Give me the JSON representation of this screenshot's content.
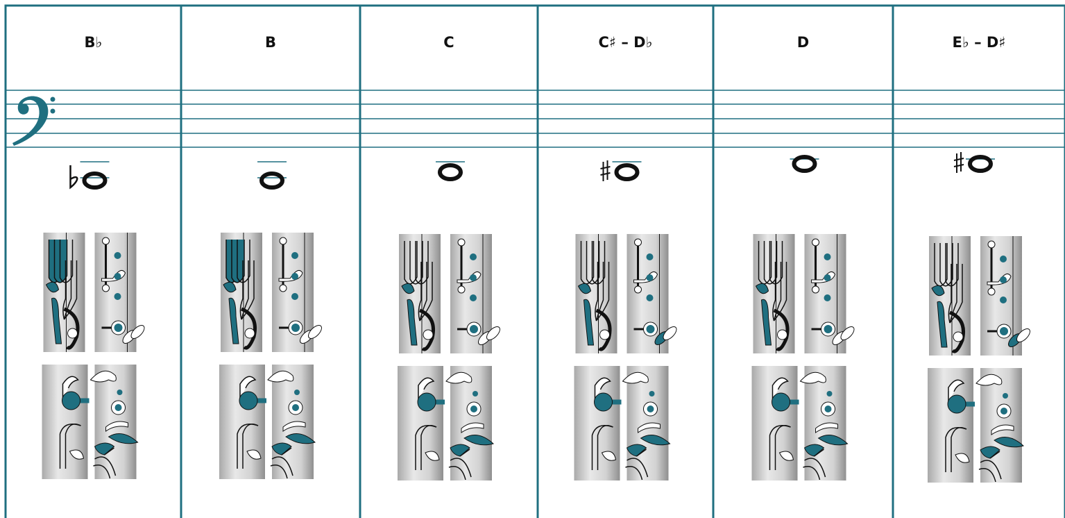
{
  "columns": [
    {
      "label": "B♭"
    },
    {
      "label": "B"
    },
    {
      "label": "C"
    },
    {
      "label": "C♯ – D♭"
    },
    {
      "label": "D"
    },
    {
      "label": "E♭ – D♯"
    }
  ]
}
